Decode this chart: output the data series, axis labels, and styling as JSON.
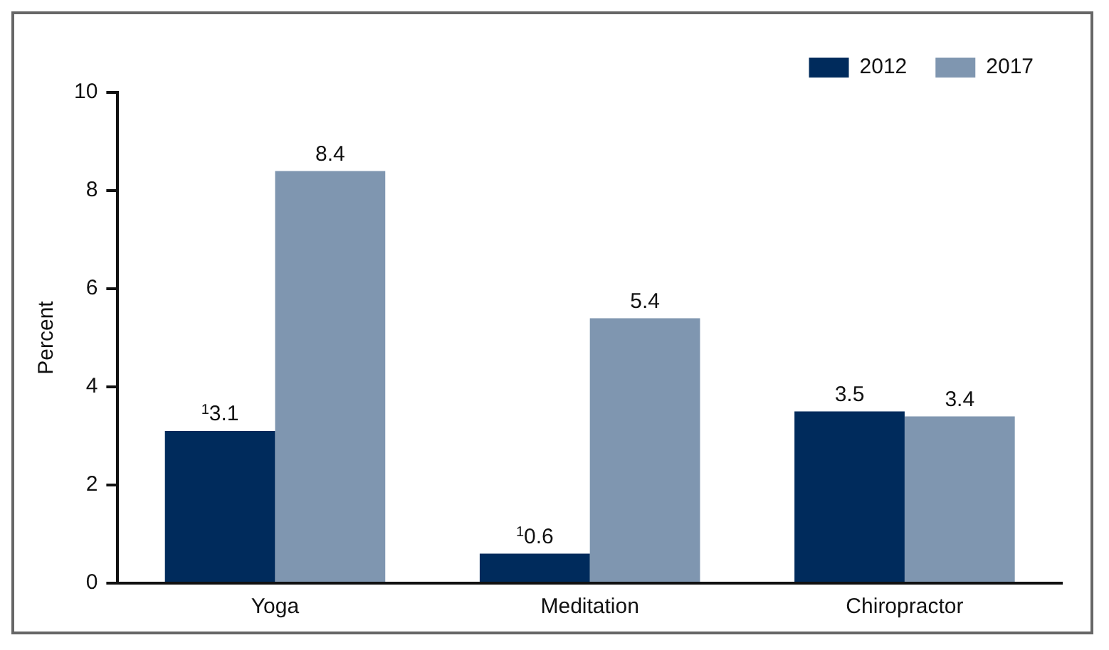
{
  "chart_data": {
    "type": "bar",
    "categories": [
      "Yoga",
      "Meditation",
      "Chiropractor"
    ],
    "series": [
      {
        "name": "2012",
        "color": "#002b5c",
        "values": [
          3.1,
          0.6,
          3.5
        ],
        "value_labels": [
          "$^{1}$3.1",
          "$^{1}$0.6",
          "3.5"
        ]
      },
      {
        "name": "2017",
        "color": "#7f96b0",
        "values": [
          8.4,
          5.4,
          3.4
        ],
        "value_labels": [
          "8.4",
          "5.4",
          "3.4"
        ]
      }
    ],
    "ylabel": "Percent",
    "ylim": [
      0,
      10
    ],
    "yticks": [
      0,
      2,
      4,
      6,
      8,
      10
    ],
    "grid": false,
    "legend": "top right"
  }
}
